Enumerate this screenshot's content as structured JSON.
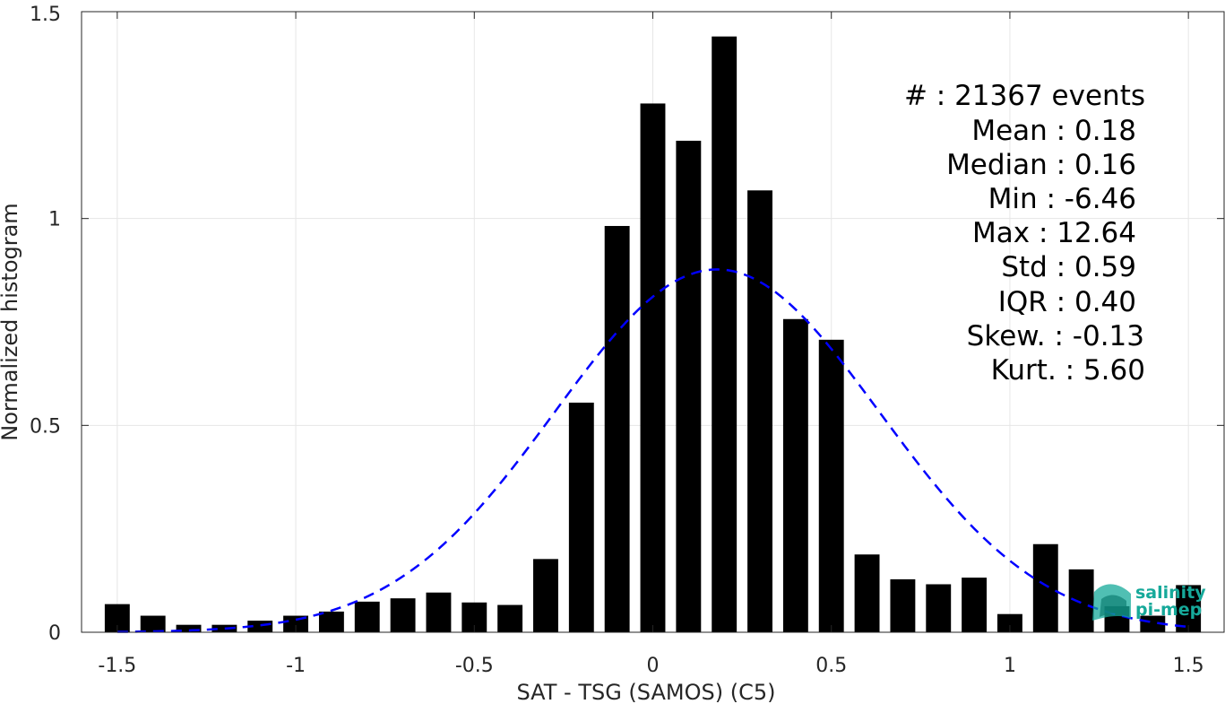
{
  "chart_data": {
    "type": "bar",
    "xlabel": "SAT - TSG (SAMOS) (C5)",
    "ylabel": "Normalized histogram",
    "xlim": [
      -1.6,
      1.6
    ],
    "ylim": [
      0,
      1.5
    ],
    "grid": true,
    "x_ticks": [
      -1.5,
      -1,
      -0.5,
      0,
      0.5,
      1,
      1.5
    ],
    "x_tick_labels": [
      "-1.5",
      "-1",
      "-0.5",
      "0",
      "0.5",
      "1",
      "1.5"
    ],
    "y_ticks": [
      0,
      0.5,
      1,
      1.5
    ],
    "y_tick_labels": [
      "0",
      "0.5",
      "1",
      "1.5"
    ],
    "bar_width": 0.07,
    "bars": [
      {
        "x": -1.5,
        "value": 0.068
      },
      {
        "x": -1.4,
        "value": 0.04
      },
      {
        "x": -1.3,
        "value": 0.018
      },
      {
        "x": -1.2,
        "value": 0.018
      },
      {
        "x": -1.1,
        "value": 0.028
      },
      {
        "x": -1.0,
        "value": 0.04
      },
      {
        "x": -0.9,
        "value": 0.05
      },
      {
        "x": -0.8,
        "value": 0.074
      },
      {
        "x": -0.7,
        "value": 0.082
      },
      {
        "x": -0.6,
        "value": 0.096
      },
      {
        "x": -0.5,
        "value": 0.072
      },
      {
        "x": -0.4,
        "value": 0.066
      },
      {
        "x": -0.3,
        "value": 0.177
      },
      {
        "x": -0.2,
        "value": 0.555
      },
      {
        "x": -0.1,
        "value": 0.982
      },
      {
        "x": 0.0,
        "value": 1.278
      },
      {
        "x": 0.1,
        "value": 1.188
      },
      {
        "x": 0.2,
        "value": 1.44
      },
      {
        "x": 0.3,
        "value": 1.068
      },
      {
        "x": 0.4,
        "value": 0.757
      },
      {
        "x": 0.5,
        "value": 0.707
      },
      {
        "x": 0.6,
        "value": 0.188
      },
      {
        "x": 0.7,
        "value": 0.128
      },
      {
        "x": 0.8,
        "value": 0.116
      },
      {
        "x": 0.9,
        "value": 0.132
      },
      {
        "x": 1.0,
        "value": 0.044
      },
      {
        "x": 1.1,
        "value": 0.213
      },
      {
        "x": 1.2,
        "value": 0.152
      },
      {
        "x": 1.3,
        "value": 0.063
      },
      {
        "x": 1.4,
        "value": 0.04
      },
      {
        "x": 1.5,
        "value": 0.114
      }
    ],
    "fit_curve": {
      "type": "gaussian",
      "style": "dashed",
      "color": "#0000ff",
      "mean": 0.18,
      "peak": 0.877,
      "sigma": 0.455,
      "x_range": [
        -1.5,
        1.5
      ]
    },
    "colors": {
      "bars": "#000000",
      "fit": "#0000ff",
      "grid": "#e6e6e6",
      "axis": "#262626"
    }
  },
  "stats": [
    {
      "label": "#  : 21367 events"
    },
    {
      "label": "Mean : 0.18"
    },
    {
      "label": "Median : 0.16"
    },
    {
      "label": "Min : -6.46"
    },
    {
      "label": "Max : 12.64"
    },
    {
      "label": "Std : 0.59"
    },
    {
      "label": "IQR : 0.40"
    },
    {
      "label": "Skew. : -0.13"
    },
    {
      "label": "Kurt. : 5.60"
    }
  ],
  "logo": {
    "line1": "salinity",
    "line2": "pi-mep",
    "color": "#16a99a"
  }
}
